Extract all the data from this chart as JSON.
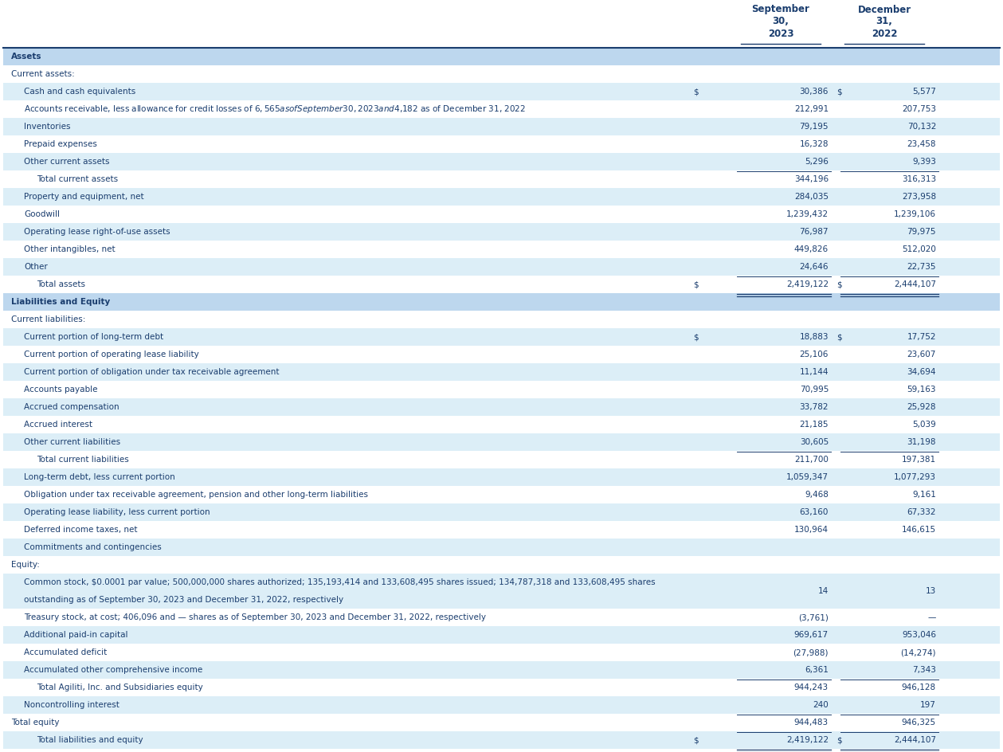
{
  "header_color": "#1a3d6e",
  "light_blue_bg": "#dceef7",
  "white_bg": "#ffffff",
  "section_header_bg": "#bdd7ee",
  "dark_blue_text": "#1a3d6e",
  "rows": [
    {
      "label": "Assets",
      "val1": "",
      "val2": "",
      "style": "section_header",
      "indent": 0
    },
    {
      "label": "Current assets:",
      "val1": "",
      "val2": "",
      "style": "white",
      "indent": 0
    },
    {
      "label": "Cash and cash equivalents",
      "val1": "30,386",
      "val2": "5,577",
      "style": "light",
      "indent": 1,
      "dollar1": true
    },
    {
      "label": "Accounts receivable, less allowance for credit losses of $6,565 as of September 30, 2023 and $4,182 as of December 31, 2022",
      "val1": "212,991",
      "val2": "207,753",
      "style": "white",
      "indent": 1
    },
    {
      "label": "Inventories",
      "val1": "79,195",
      "val2": "70,132",
      "style": "light",
      "indent": 1
    },
    {
      "label": "Prepaid expenses",
      "val1": "16,328",
      "val2": "23,458",
      "style": "white",
      "indent": 1
    },
    {
      "label": "Other current assets",
      "val1": "5,296",
      "val2": "9,393",
      "style": "light",
      "indent": 1
    },
    {
      "label": "Total current assets",
      "val1": "344,196",
      "val2": "316,313",
      "style": "white",
      "indent": 2,
      "topline": true
    },
    {
      "label": "Property and equipment, net",
      "val1": "284,035",
      "val2": "273,958",
      "style": "light",
      "indent": 1
    },
    {
      "label": "Goodwill",
      "val1": "1,239,432",
      "val2": "1,239,106",
      "style": "white",
      "indent": 1
    },
    {
      "label": "Operating lease right-of-use assets",
      "val1": "76,987",
      "val2": "79,975",
      "style": "light",
      "indent": 1
    },
    {
      "label": "Other intangibles, net",
      "val1": "449,826",
      "val2": "512,020",
      "style": "white",
      "indent": 1
    },
    {
      "label": "Other",
      "val1": "24,646",
      "val2": "22,735",
      "style": "light",
      "indent": 1
    },
    {
      "label": "Total assets",
      "val1": "2,419,122",
      "val2": "2,444,107",
      "style": "white",
      "indent": 2,
      "topline": true,
      "dollar1": true,
      "bottomline": true
    },
    {
      "label": "Liabilities and Equity",
      "val1": "",
      "val2": "",
      "style": "section_header",
      "indent": 0
    },
    {
      "label": "Current liabilities:",
      "val1": "",
      "val2": "",
      "style": "white",
      "indent": 0
    },
    {
      "label": "Current portion of long-term debt",
      "val1": "18,883",
      "val2": "17,752",
      "style": "light",
      "indent": 1,
      "dollar1": true
    },
    {
      "label": "Current portion of operating lease liability",
      "val1": "25,106",
      "val2": "23,607",
      "style": "white",
      "indent": 1
    },
    {
      "label": "Current portion of obligation under tax receivable agreement",
      "val1": "11,144",
      "val2": "34,694",
      "style": "light",
      "indent": 1
    },
    {
      "label": "Accounts payable",
      "val1": "70,995",
      "val2": "59,163",
      "style": "white",
      "indent": 1
    },
    {
      "label": "Accrued compensation",
      "val1": "33,782",
      "val2": "25,928",
      "style": "light",
      "indent": 1
    },
    {
      "label": "Accrued interest",
      "val1": "21,185",
      "val2": "5,039",
      "style": "white",
      "indent": 1
    },
    {
      "label": "Other current liabilities",
      "val1": "30,605",
      "val2": "31,198",
      "style": "light",
      "indent": 1
    },
    {
      "label": "Total current liabilities",
      "val1": "211,700",
      "val2": "197,381",
      "style": "white",
      "indent": 2,
      "topline": true
    },
    {
      "label": "Long-term debt, less current portion",
      "val1": "1,059,347",
      "val2": "1,077,293",
      "style": "light",
      "indent": 1
    },
    {
      "label": "Obligation under tax receivable agreement, pension and other long-term liabilities",
      "val1": "9,468",
      "val2": "9,161",
      "style": "white",
      "indent": 1
    },
    {
      "label": "Operating lease liability, less current portion",
      "val1": "63,160",
      "val2": "67,332",
      "style": "light",
      "indent": 1
    },
    {
      "label": "Deferred income taxes, net",
      "val1": "130,964",
      "val2": "146,615",
      "style": "white",
      "indent": 1
    },
    {
      "label": "Commitments and contingencies",
      "val1": "",
      "val2": "",
      "style": "light",
      "indent": 1
    },
    {
      "label": "Equity:",
      "val1": "",
      "val2": "",
      "style": "white",
      "indent": 0
    },
    {
      "label": "Common stock, $0.0001 par value; 500,000,000 shares authorized; 135,193,414 and 133,608,495 shares issued; 134,787,318 and 133,608,495 shares outstanding as of September 30, 2023 and December 31, 2022, respectively",
      "val1": "14",
      "val2": "13",
      "style": "light",
      "indent": 1,
      "multiline": true
    },
    {
      "label": "Treasury stock, at cost; 406,096 and — shares as of September 30, 2023 and December 31, 2022, respectively",
      "val1": "(3,761)",
      "val2": "—",
      "style": "white",
      "indent": 1
    },
    {
      "label": "Additional paid-in capital",
      "val1": "969,617",
      "val2": "953,046",
      "style": "light",
      "indent": 1
    },
    {
      "label": "Accumulated deficit",
      "val1": "(27,988)",
      "val2": "(14,274)",
      "style": "white",
      "indent": 1
    },
    {
      "label": "Accumulated other comprehensive income",
      "val1": "6,361",
      "val2": "7,343",
      "style": "light",
      "indent": 1
    },
    {
      "label": "Total Agiliti, Inc. and Subsidiaries equity",
      "val1": "944,243",
      "val2": "946,128",
      "style": "white",
      "indent": 2,
      "topline": true
    },
    {
      "label": "Noncontrolling interest",
      "val1": "240",
      "val2": "197",
      "style": "light",
      "indent": 1
    },
    {
      "label": "Total equity",
      "val1": "944,483",
      "val2": "946,325",
      "style": "white",
      "indent": 0,
      "topline": true
    },
    {
      "label": "Total liabilities and equity",
      "val1": "2,419,122",
      "val2": "2,444,107",
      "style": "light",
      "indent": 2,
      "topline": true,
      "dollar1": true,
      "bottomline": true
    }
  ]
}
